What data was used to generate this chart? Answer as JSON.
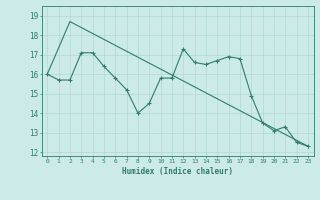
{
  "line1_x": [
    0,
    1,
    2,
    3,
    4,
    5,
    6,
    7,
    8,
    9,
    10,
    11,
    12,
    13,
    14,
    15,
    16,
    17,
    18,
    19,
    20,
    21,
    22,
    23
  ],
  "line1_y": [
    16.0,
    15.7,
    15.7,
    17.1,
    17.1,
    16.4,
    15.8,
    15.2,
    14.0,
    14.5,
    15.8,
    15.8,
    17.3,
    16.6,
    16.5,
    16.7,
    16.9,
    16.8,
    14.9,
    13.5,
    13.1,
    13.3,
    12.5,
    12.3
  ],
  "line2_x": [
    0,
    2,
    23
  ],
  "line2_y": [
    16.0,
    18.7,
    12.3
  ],
  "bg_color": "#cceae8",
  "line_color": "#2e7d6e",
  "grid_color": "#b0d8d5",
  "xlabel": "Humidex (Indice chaleur)",
  "ylabel_ticks": [
    12,
    13,
    14,
    15,
    16,
    17,
    18,
    19
  ],
  "xlim": [
    -0.5,
    23.5
  ],
  "ylim": [
    11.8,
    19.5
  ],
  "title": ""
}
